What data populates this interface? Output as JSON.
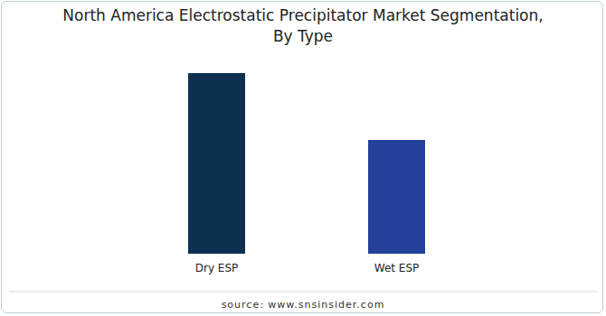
{
  "chart_data": {
    "type": "bar",
    "title": "North America Electrostatic Precipitator Market Segmentation,\nBy Type",
    "categories": [
      "Dry ESP",
      "Wet ESP"
    ],
    "values": [
      100,
      63
    ],
    "colors": [
      "#0d3050",
      "#23409a"
    ],
    "ylim": [
      0,
      100
    ],
    "tick_labels": "x",
    "grid": false,
    "source": "source: www.snsinsider.com"
  }
}
